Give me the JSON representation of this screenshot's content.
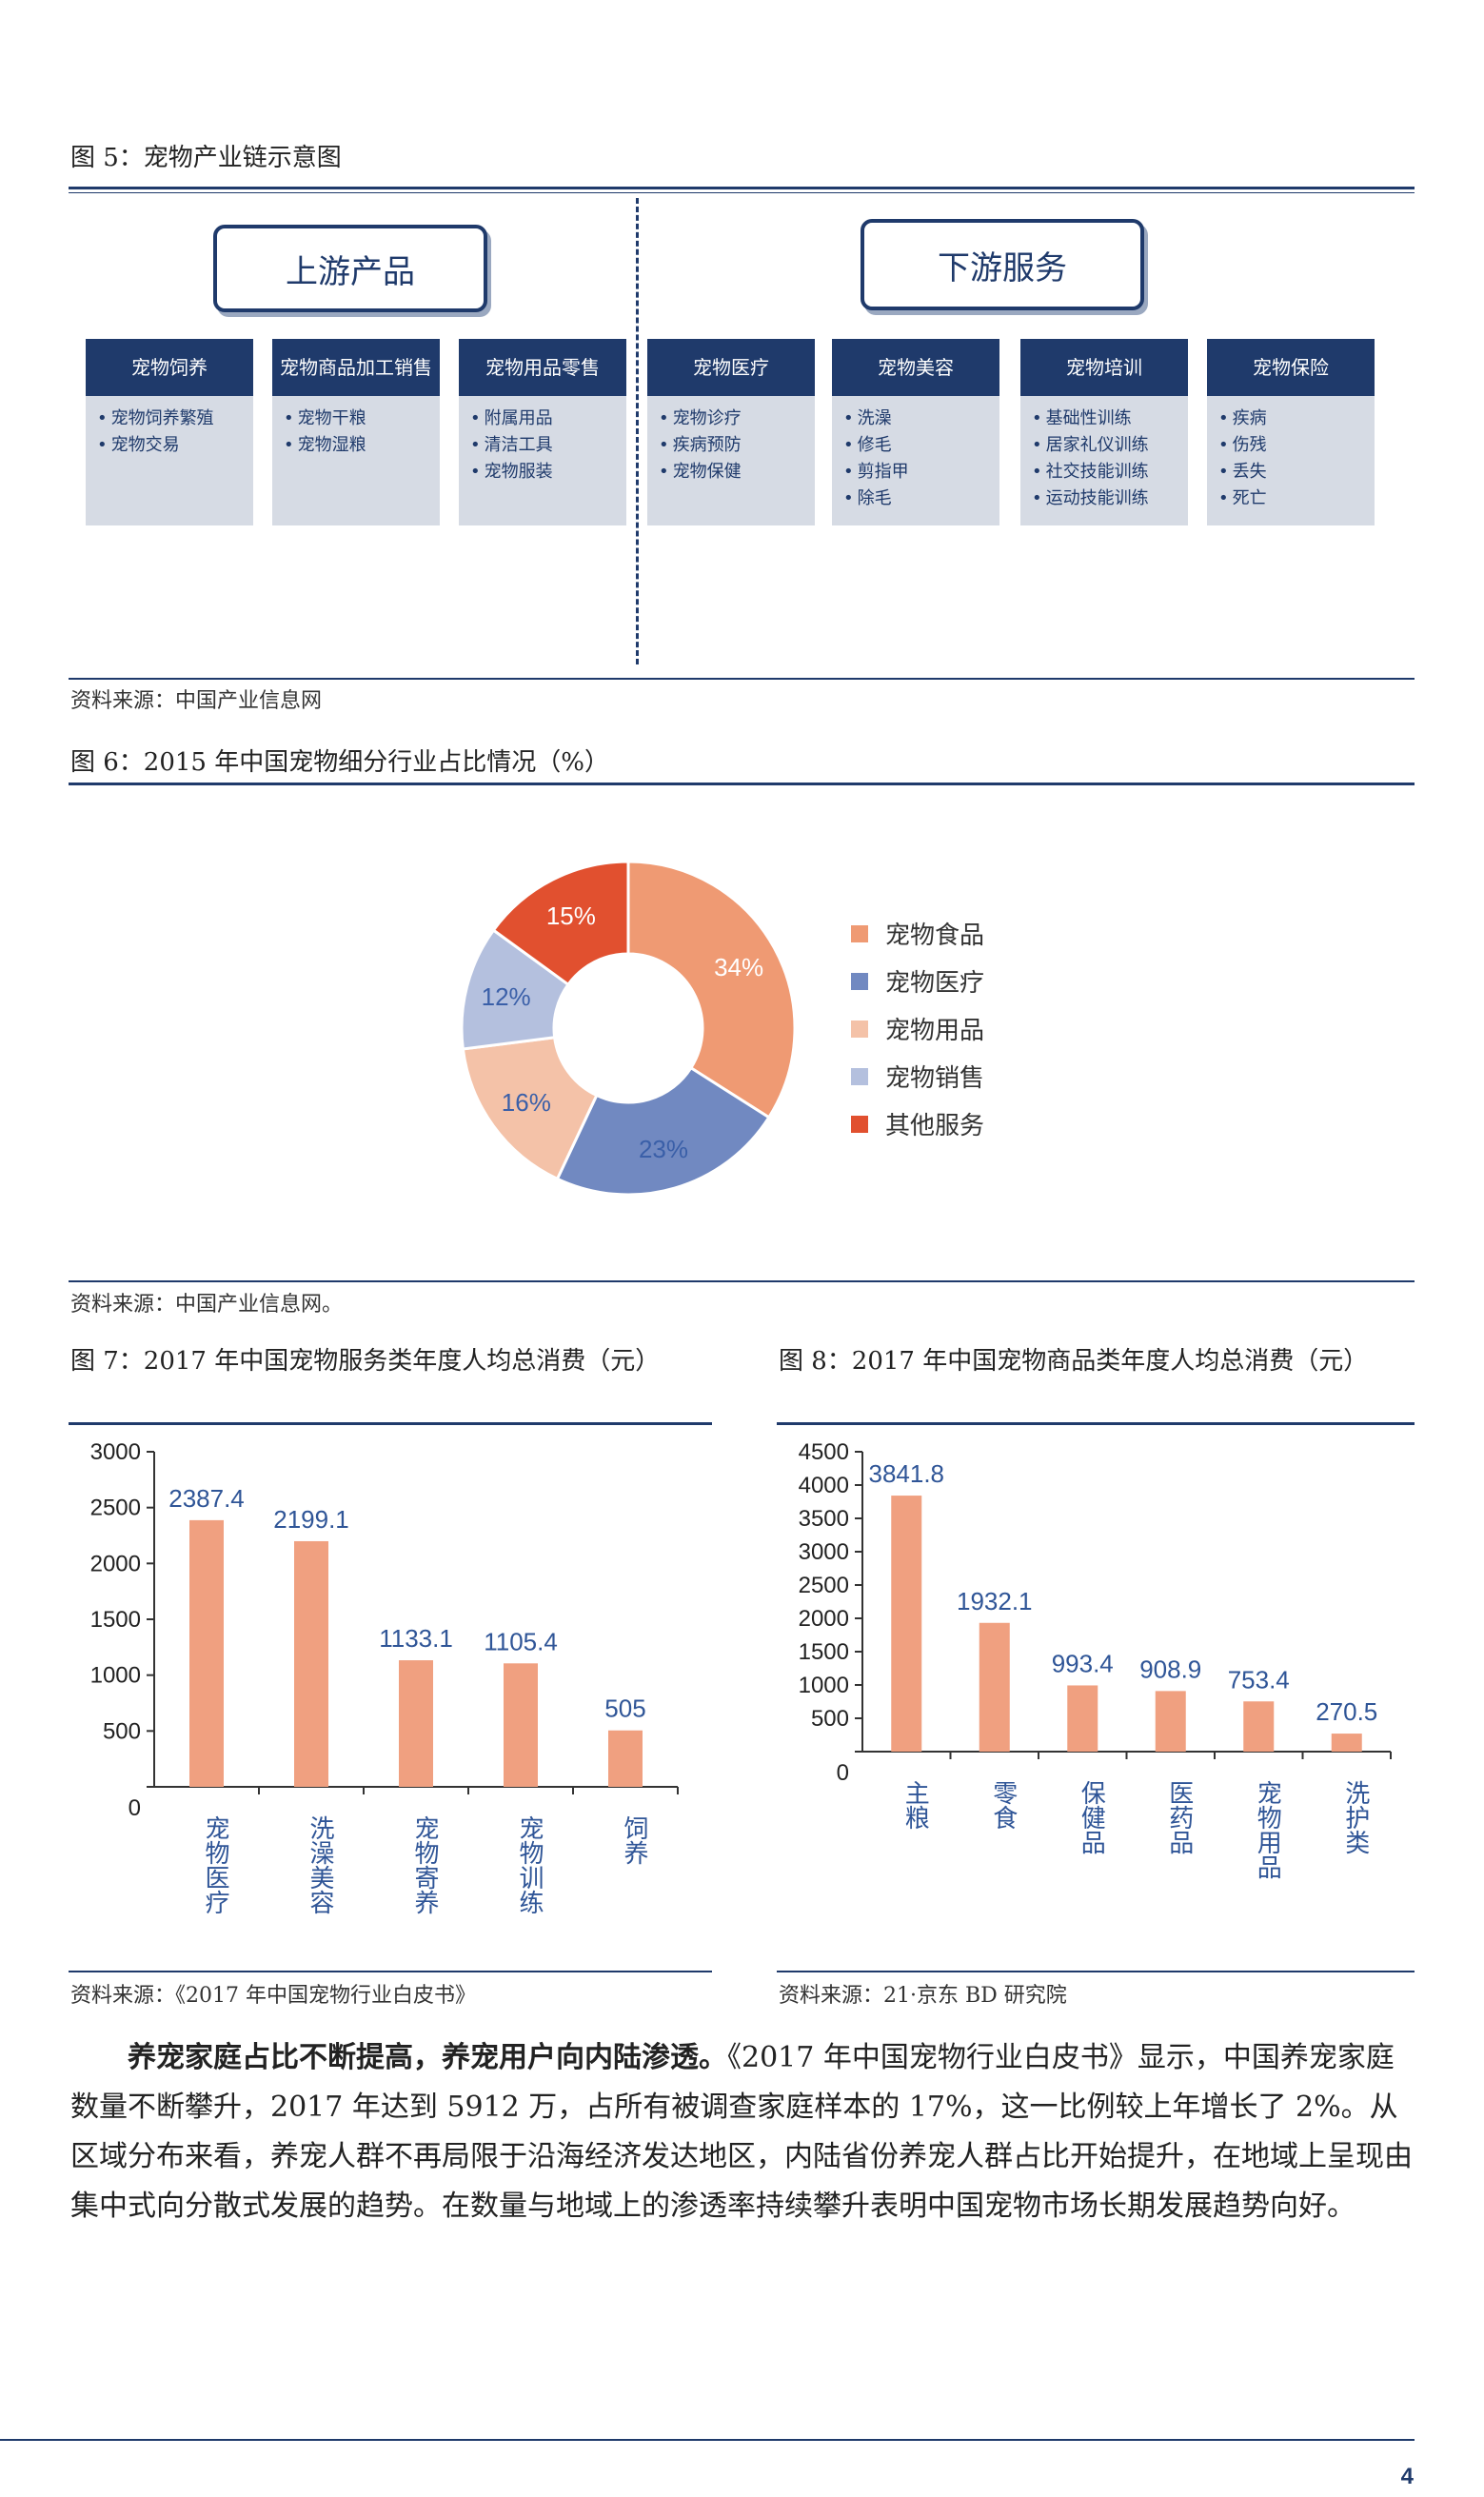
{
  "fig5": {
    "title": "图 5：宠物产业链示意图",
    "upstream_label": "上游产品",
    "downstream_label": "下游服务",
    "cards": [
      {
        "head": "宠物饲养",
        "items": [
          "宠物饲养繁殖",
          "宠物交易"
        ]
      },
      {
        "head": "宠物商品加工销售",
        "items": [
          "宠物干粮",
          "宠物湿粮"
        ]
      },
      {
        "head": "宠物用品零售",
        "items": [
          "附属用品",
          "清洁工具",
          "宠物服装"
        ]
      },
      {
        "head": "宠物医疗",
        "items": [
          "宠物诊疗",
          "疾病预防",
          "宠物保健"
        ]
      },
      {
        "head": "宠物美容",
        "items": [
          "洗澡",
          "修毛",
          "剪指甲",
          "除毛"
        ]
      },
      {
        "head": "宠物培训",
        "items": [
          "基础性训练",
          "居家礼仪训练",
          "社交技能训练",
          "运动技能训练"
        ]
      },
      {
        "head": "宠物保险",
        "items": [
          "疾病",
          "伤残",
          "丢失",
          "死亡"
        ]
      }
    ],
    "source": "资料来源：中国产业信息网"
  },
  "fig6": {
    "title": "图 6：2015 年中国宠物细分行业占比情况（%）",
    "source": "资料来源：中国产业信息网。"
  },
  "fig7": {
    "title": "图 7：2017 年中国宠物服务类年度人均总消费（元）",
    "source": "资料来源：《2017 年中国宠物行业白皮书》"
  },
  "fig8": {
    "title": "图 8：2017 年中国宠物商品类年度人均总消费（元）",
    "source": "资料来源：21·京东 BD 研究院"
  },
  "paragraph": {
    "bold_lead": "养宠家庭占比不断提高，养宠用户向内陆渗透。",
    "body": "《2017 年中国宠物行业白皮书》显示，中国养宠家庭数量不断攀升，2017 年达到 5912 万，占所有被调查家庭样本的 17%，这一比例较上年增长了 2%。从区域分布来看，养宠人群不再局限于沿海经济发达地区，内陆省份养宠人群占比开始提升，在地域上呈现由集中式向分散式发展的趋势。在数量与地域上的渗透率持续攀升表明中国宠物市场长期发展趋势向好。"
  },
  "page_number": "4",
  "colors": {
    "navy": "#1f3a6b",
    "bar": "#f0a080"
  },
  "chart_data": [
    {
      "type": "pie",
      "donut": true,
      "categories": [
        "宠物食品",
        "宠物医疗",
        "宠物用品",
        "宠物销售",
        "其他服务"
      ],
      "values": [
        34,
        23,
        16,
        12,
        15
      ],
      "labels": [
        "34%",
        "23%",
        "16%",
        "12%",
        "15%"
      ],
      "colors": [
        "#ef9a73",
        "#7189c1",
        "#f4c2a8",
        "#b4c0de",
        "#e1502f"
      ],
      "legend": "right"
    },
    {
      "type": "bar",
      "categories": [
        "宠物医疗",
        "洗澡美容",
        "宠物寄养",
        "宠物训练",
        "饲养"
      ],
      "values": [
        2387.4,
        2199.1,
        1133.1,
        1105.4,
        505
      ],
      "value_labels": [
        "2387.4",
        "2199.1",
        "1133.1",
        "1105.4",
        "505"
      ],
      "yticks": [
        "0",
        "500",
        "1000",
        "1500",
        "2000",
        "2500",
        "3000"
      ],
      "ylim": [
        0,
        3000
      ]
    },
    {
      "type": "bar",
      "categories": [
        "主粮",
        "零食",
        "保健品",
        "医药品",
        "宠物用品",
        "洗护类"
      ],
      "values": [
        3841.8,
        1932.1,
        993.4,
        908.9,
        753.4,
        270.5
      ],
      "value_labels": [
        "3841.8",
        "1932.1",
        "993.4",
        "908.9",
        "753.4",
        "270.5"
      ],
      "yticks": [
        "0",
        "500",
        "1000",
        "1500",
        "2000",
        "2500",
        "3000",
        "3500",
        "4000",
        "4500"
      ],
      "ylim": [
        0,
        4500
      ]
    }
  ]
}
